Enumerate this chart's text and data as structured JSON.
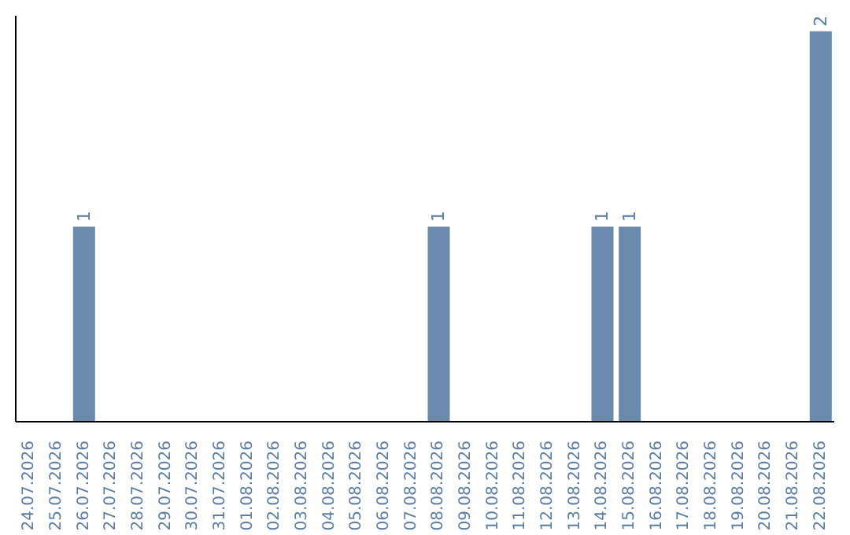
{
  "chart_data": {
    "type": "bar",
    "categories": [
      "24.07.2026",
      "25.07.2026",
      "26.07.2026",
      "27.07.2026",
      "28.07.2026",
      "29.07.2026",
      "30.07.2026",
      "31.07.2026",
      "01.08.2026",
      "02.08.2026",
      "03.08.2026",
      "04.08.2026",
      "05.08.2026",
      "06.08.2026",
      "07.08.2026",
      "08.08.2026",
      "09.08.2026",
      "10.08.2026",
      "11.08.2026",
      "12.08.2026",
      "13.08.2026",
      "14.08.2026",
      "15.08.2026",
      "16.08.2026",
      "17.08.2026",
      "18.08.2026",
      "19.08.2026",
      "20.08.2026",
      "21.08.2026",
      "22.08.2026"
    ],
    "values": [
      0,
      0,
      1,
      0,
      0,
      0,
      0,
      0,
      0,
      0,
      0,
      0,
      0,
      0,
      0,
      1,
      0,
      0,
      0,
      0,
      0,
      1,
      1,
      0,
      0,
      0,
      0,
      0,
      0,
      2
    ],
    "value_labels": [
      null,
      null,
      "1",
      null,
      null,
      null,
      null,
      null,
      null,
      null,
      null,
      null,
      null,
      null,
      null,
      "1",
      null,
      null,
      null,
      null,
      null,
      "1",
      "1",
      null,
      null,
      null,
      null,
      null,
      null,
      "2"
    ],
    "color": "#6a8aab",
    "ylim": [
      0,
      2.08
    ],
    "tick_labels": "x",
    "grid": false,
    "legend": false
  }
}
